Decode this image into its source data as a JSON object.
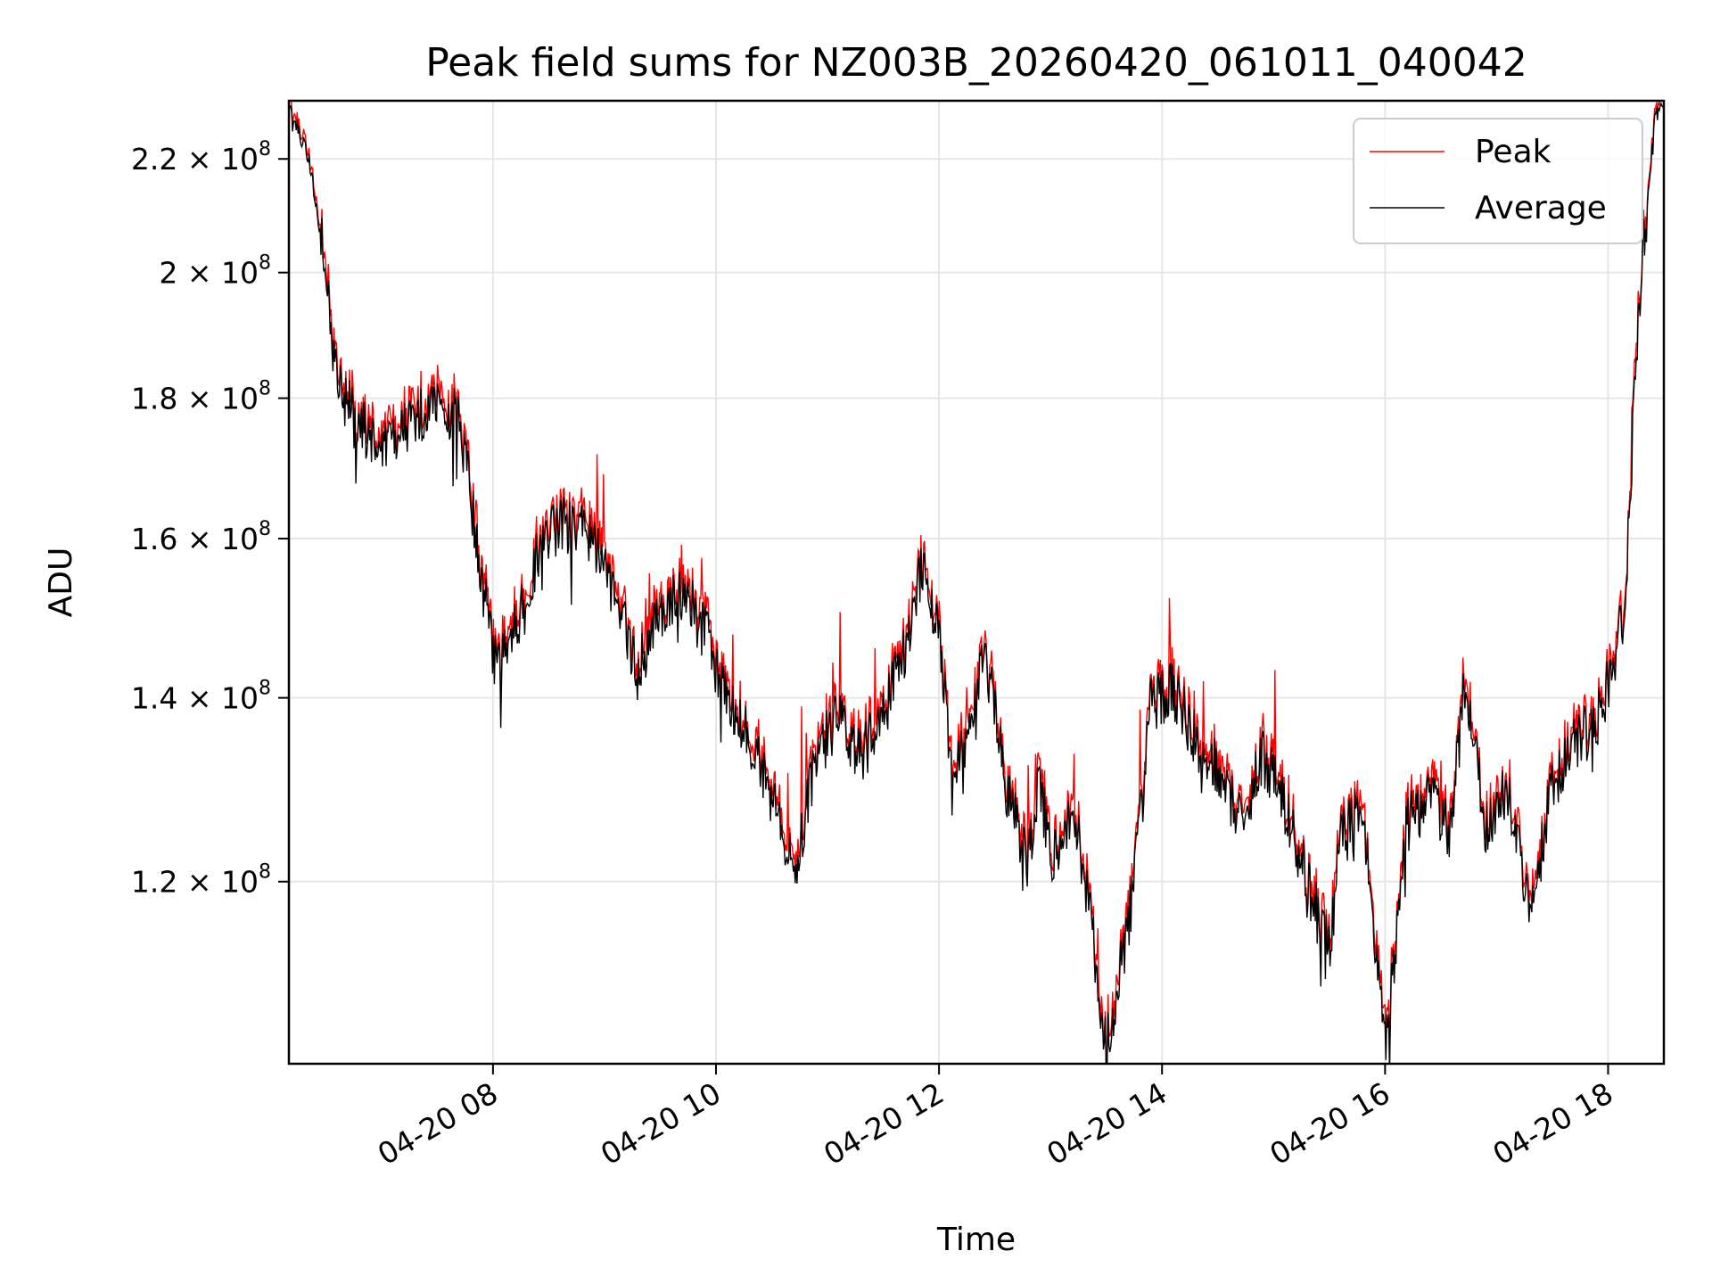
{
  "chart_data": {
    "type": "line",
    "title": "Peak field sums for NZ003B_20260420_061011_040042",
    "xlabel": "Time",
    "ylabel": "ADU",
    "y_scale": "log",
    "grid": true,
    "legend_position": "upper right",
    "xlim_hours": [
      6.17,
      18.5
    ],
    "ylim": [
      103000000,
      231000000
    ],
    "x_ticks": [
      {
        "hour": 8,
        "label": "04-20 08"
      },
      {
        "hour": 10,
        "label": "04-20 10"
      },
      {
        "hour": 12,
        "label": "04-20 12"
      },
      {
        "hour": 14,
        "label": "04-20 14"
      },
      {
        "hour": 16,
        "label": "04-20 16"
      },
      {
        "hour": 18,
        "label": "04-20 18"
      }
    ],
    "y_ticks": [
      {
        "value": 120000000,
        "mantissa": "1.2",
        "exponent": "8"
      },
      {
        "value": 140000000,
        "mantissa": "1.4",
        "exponent": "8"
      },
      {
        "value": 160000000,
        "mantissa": "1.6",
        "exponent": "8"
      },
      {
        "value": 180000000,
        "mantissa": "1.8",
        "exponent": "8"
      },
      {
        "value": 200000000,
        "mantissa": "2",
        "exponent": "8"
      },
      {
        "value": 220000000,
        "mantissa": "2.2",
        "exponent": "8"
      }
    ],
    "series": [
      {
        "name": "Peak",
        "color": "#ff0000"
      },
      {
        "name": "Average",
        "color": "#000000"
      }
    ],
    "average_anchors_hour_adu": [
      [
        6.17,
        230000000
      ],
      [
        6.35,
        220000000
      ],
      [
        6.5,
        200000000
      ],
      [
        6.6,
        182000000
      ],
      [
        6.8,
        176000000
      ],
      [
        7.0,
        173000000
      ],
      [
        7.2,
        176000000
      ],
      [
        7.5,
        178000000
      ],
      [
        7.7,
        177000000
      ],
      [
        7.8,
        165000000
      ],
      [
        8.0,
        145000000
      ],
      [
        8.2,
        148000000
      ],
      [
        8.4,
        158000000
      ],
      [
        8.6,
        162000000
      ],
      [
        8.9,
        160000000
      ],
      [
        9.1,
        152000000
      ],
      [
        9.3,
        143000000
      ],
      [
        9.5,
        150000000
      ],
      [
        9.7,
        153000000
      ],
      [
        9.9,
        148000000
      ],
      [
        10.1,
        140000000
      ],
      [
        10.3,
        135000000
      ],
      [
        10.5,
        130000000
      ],
      [
        10.7,
        121000000
      ],
      [
        10.9,
        133000000
      ],
      [
        11.1,
        138000000
      ],
      [
        11.3,
        133000000
      ],
      [
        11.5,
        138000000
      ],
      [
        11.7,
        146000000
      ],
      [
        11.85,
        156000000
      ],
      [
        12.0,
        148000000
      ],
      [
        12.1,
        132000000
      ],
      [
        12.3,
        136000000
      ],
      [
        12.4,
        146000000
      ],
      [
        12.6,
        130000000
      ],
      [
        12.8,
        122000000
      ],
      [
        12.9,
        132000000
      ],
      [
        13.0,
        121000000
      ],
      [
        13.2,
        128000000
      ],
      [
        13.4,
        113000000
      ],
      [
        13.5,
        104000000
      ],
      [
        13.7,
        116000000
      ],
      [
        13.8,
        125000000
      ],
      [
        13.9,
        139000000
      ],
      [
        14.1,
        141000000
      ],
      [
        14.3,
        135000000
      ],
      [
        14.5,
        132000000
      ],
      [
        14.7,
        126000000
      ],
      [
        14.9,
        133000000
      ],
      [
        15.1,
        128000000
      ],
      [
        15.3,
        120000000
      ],
      [
        15.5,
        113000000
      ],
      [
        15.6,
        124000000
      ],
      [
        15.8,
        128000000
      ],
      [
        16.0,
        104000000
      ],
      [
        16.2,
        126000000
      ],
      [
        16.4,
        129000000
      ],
      [
        16.6,
        125000000
      ],
      [
        16.7,
        142000000
      ],
      [
        16.9,
        126000000
      ],
      [
        17.1,
        130000000
      ],
      [
        17.3,
        116000000
      ],
      [
        17.5,
        130000000
      ],
      [
        17.7,
        135000000
      ],
      [
        17.9,
        137000000
      ],
      [
        18.0,
        142000000
      ],
      [
        18.15,
        150000000
      ],
      [
        18.3,
        200000000
      ],
      [
        18.42,
        228000000
      ],
      [
        18.5,
        230000000
      ]
    ]
  }
}
